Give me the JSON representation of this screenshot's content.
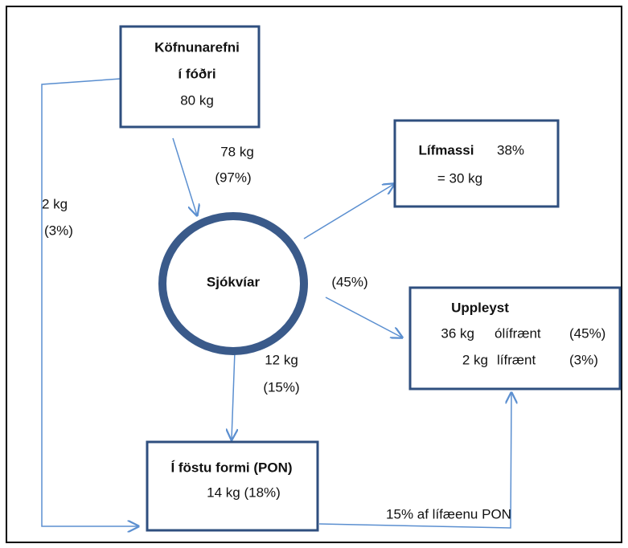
{
  "nodes": [
    {
      "lines": [
        "Köfnunarefni",
        "í fóðri",
        "80 kg"
      ]
    },
    {
      "lines": [
        "Sjókvíar"
      ]
    },
    {
      "lines": [
        "Lífmassi",
        "38%",
        "= 30 kg"
      ]
    },
    {
      "lines": [
        "Uppleyst",
        "36 kg",
        "ólífrænt",
        "(45%)",
        "2 kg",
        "lífrænt",
        "(3%)"
      ]
    },
    {
      "lines": [
        "Í föstu formi (PON)",
        "14 kg  (18%)"
      ]
    }
  ],
  "edges": [
    {
      "labels": [
        "78 kg",
        "(97%)"
      ]
    },
    {
      "labels": [
        "2 kg",
        "(3%)"
      ]
    },
    {
      "labels": [
        "(45%)"
      ]
    },
    {
      "labels": [
        "12 kg",
        "(15%)"
      ]
    },
    {
      "labels": [
        "15% af lífæenu PON"
      ]
    }
  ]
}
